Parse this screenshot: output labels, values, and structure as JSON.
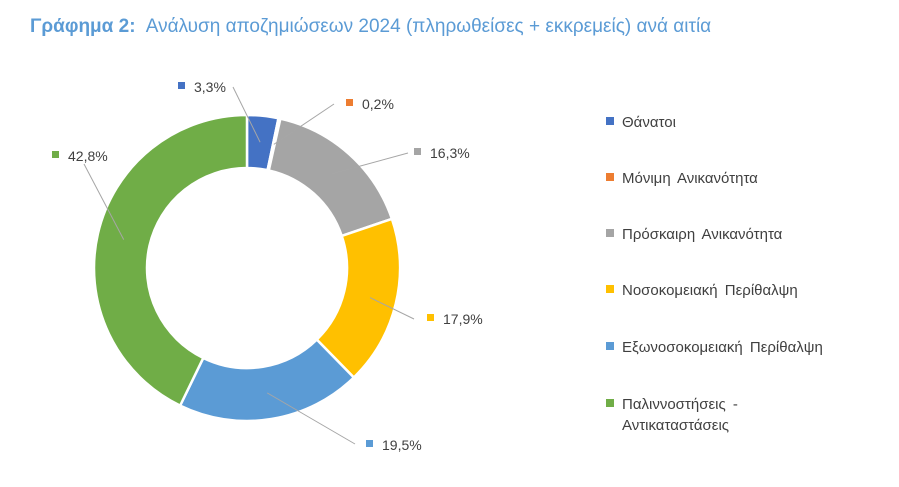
{
  "header": {
    "label": "Γράφημα 2:",
    "title": "Ανάλυση αποζημιώσεων 2024 (πληρωθείσες + εκκρεμείς) ανά αιτία"
  },
  "chart_data": {
    "type": "pie",
    "variant": "donut",
    "legend_position": "right",
    "categories": [
      "Θάνατοι",
      "Μόνιμη Ανικανότητα",
      "Πρόσκαιρη Ανικανότητα",
      "Νοσοκομειακή Περίθαλψη",
      "Εξωνοσοκομειακή Περίθαλψη",
      "Παλιννοστήσεις - Αντικαταστάσεις"
    ],
    "values": [
      3.3,
      0.2,
      16.3,
      17.9,
      19.5,
      42.8
    ],
    "data_labels": [
      "3,3%",
      "0,2%",
      "16,3%",
      "17,9%",
      "19,5%",
      "42,8%"
    ],
    "colors": [
      "#4472c4",
      "#ed7d31",
      "#a5a5a5",
      "#ffc000",
      "#5b9bd5",
      "#70ad47"
    ],
    "legend_lines": [
      [
        "Θάνατοι"
      ],
      [
        "Μόνιμη Ανικανότητα"
      ],
      [
        "Πρόσκαιρη Ανικανότητα"
      ],
      [
        "Νοσοκομειακή Περίθαλψη"
      ],
      [
        "Εξωνοσοκομειακή Περίθαλψη"
      ],
      [
        "Παλιννοστήσεις -",
        "Αντικαταστάσεις"
      ]
    ]
  }
}
